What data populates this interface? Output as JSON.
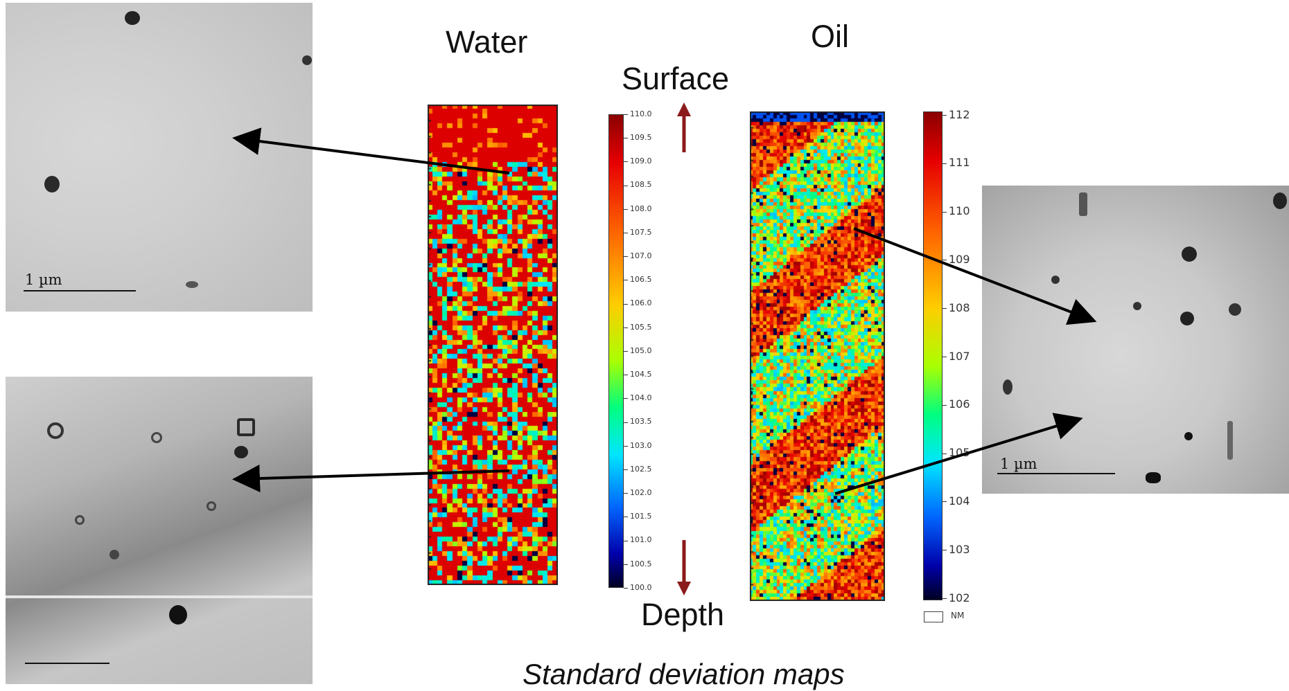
{
  "headers": {
    "water": "Water",
    "oil": "Oil",
    "surface": "Surface",
    "depth": "Depth"
  },
  "caption": "Standard deviation maps",
  "micrographs": {
    "top_left_scale": "1 µm",
    "right_scale": "1 µm"
  },
  "water_colorbar": {
    "min": 100.0,
    "max": 110.0,
    "ticks": [
      "110.0",
      "109.5",
      "109.0",
      "108.5",
      "108.0",
      "107.5",
      "107.0",
      "106.5",
      "106.0",
      "105.5",
      "105.0",
      "104.5",
      "104.0",
      "103.5",
      "103.0",
      "102.5",
      "102.0",
      "101.5",
      "101.0",
      "100.5",
      "100.0"
    ]
  },
  "oil_colorbar": {
    "min": 102,
    "max": 112,
    "ticks": [
      "112",
      "111",
      "110",
      "109",
      "108",
      "107",
      "106",
      "105",
      "104",
      "103",
      "102"
    ],
    "nm_label": "NM"
  },
  "colors": {
    "surface_depth_arrow": "#8b1a1a",
    "pointer_arrow": "#000000",
    "map_high": "#b01010"
  }
}
